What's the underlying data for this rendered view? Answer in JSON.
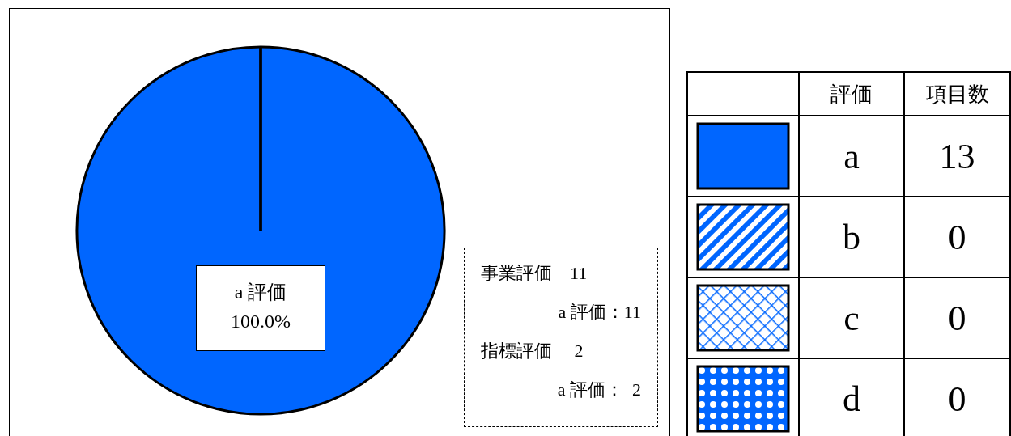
{
  "chart_data": {
    "type": "pie",
    "categories": [
      "a",
      "b",
      "c",
      "d"
    ],
    "values": [
      13,
      0,
      0,
      0
    ],
    "colors": [
      "#0066ff",
      "#0066ff",
      "#0066ff",
      "#0066ff"
    ],
    "legend_title": "評価",
    "legend": "right",
    "value_labels": [
      "13",
      "0",
      "0",
      "0"
    ],
    "annotations": [
      "a 評価\n100.0%",
      "項目数",
      "事業評価　11",
      "a 評価：11",
      "指標評価　 2",
      "a 評価：  2"
    ]
  }
}
